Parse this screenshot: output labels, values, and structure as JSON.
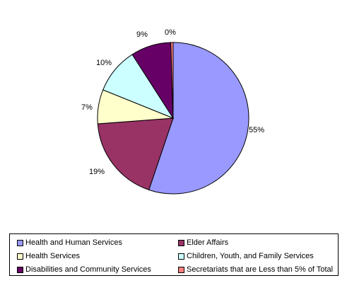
{
  "chart_data": {
    "type": "pie",
    "title": "",
    "slices": [
      {
        "label": "Health and Human Services",
        "value": 55.2,
        "display": "55%",
        "color": "#9999ff"
      },
      {
        "label": "Elder Affairs",
        "value": 18.6,
        "display": "19%",
        "color": "#993366"
      },
      {
        "label": "Health Services",
        "value": 7.3,
        "display": "7%",
        "color": "#ffffcc"
      },
      {
        "label": "Children, Youth, and Family Services",
        "value": 9.8,
        "display": "10%",
        "color": "#ccffff"
      },
      {
        "label": "Disabilities and Community Services",
        "value": 8.6,
        "display": "9%",
        "color": "#660066"
      },
      {
        "label": "Secretariats that are Less than 5% of Total",
        "value": 0.5,
        "display": "0%",
        "color": "#ff8080"
      }
    ],
    "legend_position": "bottom"
  }
}
